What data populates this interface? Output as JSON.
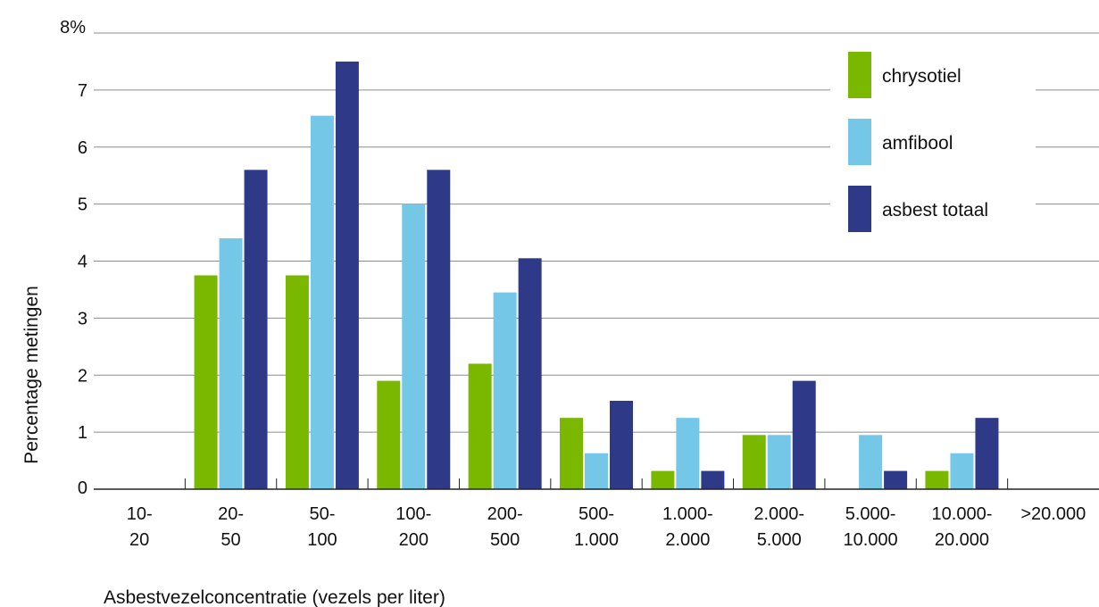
{
  "chart_data": {
    "type": "bar",
    "title": "",
    "xlabel": "Asbestvezelconcentratie (vezels per liter)",
    "ylabel": "Percentage metingen",
    "ylim": [
      0,
      8
    ],
    "yticks": [
      {
        "value": 0,
        "label": "0"
      },
      {
        "value": 1,
        "label": "1"
      },
      {
        "value": 2,
        "label": "2"
      },
      {
        "value": 3,
        "label": "3"
      },
      {
        "value": 4,
        "label": "4"
      },
      {
        "value": 5,
        "label": "5"
      },
      {
        "value": 6,
        "label": "6"
      },
      {
        "value": 7,
        "label": "7"
      },
      {
        "value": 8,
        "label": "8%"
      }
    ],
    "categories": [
      [
        "10-",
        "20"
      ],
      [
        "20-",
        "50"
      ],
      [
        "50-",
        "100"
      ],
      [
        "100-",
        "200"
      ],
      [
        "200-",
        "500"
      ],
      [
        "500-",
        "1.000"
      ],
      [
        "1.000-",
        "2.000"
      ],
      [
        "2.000-",
        "5.000"
      ],
      [
        "5.000-",
        "10.000"
      ],
      [
        "10.000-",
        "20.000"
      ],
      [
        ">20.000"
      ]
    ],
    "series": [
      {
        "name": "chrysotiel",
        "color": "#7ab800",
        "values": [
          0,
          3.75,
          3.75,
          1.9,
          2.2,
          1.25,
          0.32,
          0.95,
          0,
          0.32,
          0
        ]
      },
      {
        "name": "amfibool",
        "color": "#74c7e6",
        "values": [
          0,
          4.4,
          6.55,
          5.0,
          3.45,
          0.63,
          1.25,
          0.95,
          0.95,
          0.63,
          0
        ]
      },
      {
        "name": "asbest totaal",
        "color": "#2e3a87",
        "values": [
          0,
          5.6,
          7.5,
          5.6,
          4.05,
          1.55,
          0.32,
          1.9,
          0.32,
          1.25,
          0
        ]
      }
    ],
    "grid": true,
    "legend_position": "top-right"
  }
}
